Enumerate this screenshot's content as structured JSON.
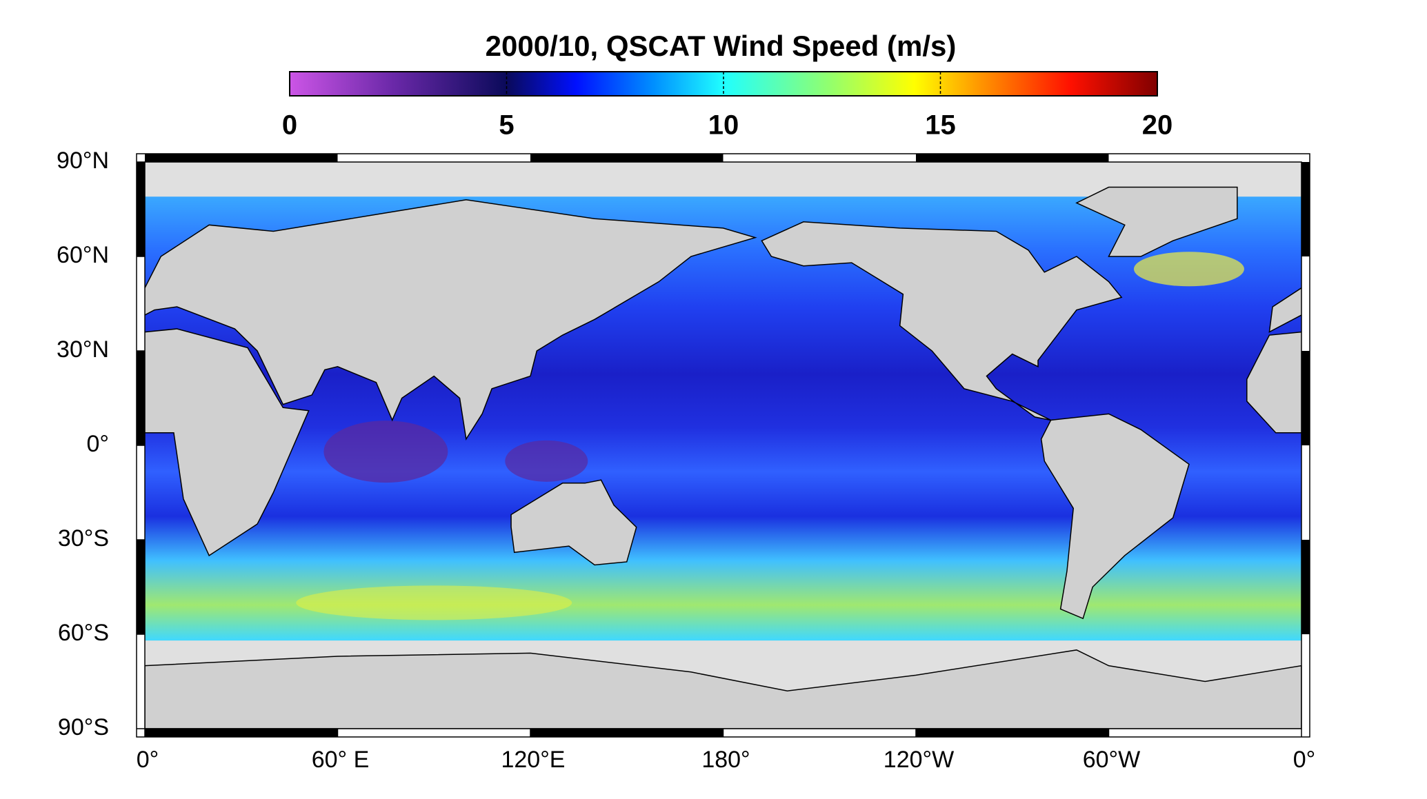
{
  "title": "2000/10,  QSCAT Wind Speed (m/s)",
  "colorbar": {
    "range": [
      0,
      20
    ],
    "ticks": [
      0,
      5,
      10,
      15,
      20
    ]
  },
  "map": {
    "lat_ticks": [
      {
        "value": 90,
        "label": "90°N"
      },
      {
        "value": 60,
        "label": "60°N"
      },
      {
        "value": 30,
        "label": "30°N"
      },
      {
        "value": 0,
        "label": "0°"
      },
      {
        "value": -30,
        "label": "30°S"
      },
      {
        "value": -60,
        "label": "60°S"
      },
      {
        "value": -90,
        "label": "90°S"
      }
    ],
    "lon_ticks": [
      {
        "value": 0,
        "label": "0°"
      },
      {
        "value": 60,
        "label": "60° E"
      },
      {
        "value": 120,
        "label": "120°E"
      },
      {
        "value": 180,
        "label": "180°"
      },
      {
        "value": 240,
        "label": "120°W"
      },
      {
        "value": 300,
        "label": "60°W"
      },
      {
        "value": 360,
        "label": "0°"
      }
    ]
  }
}
